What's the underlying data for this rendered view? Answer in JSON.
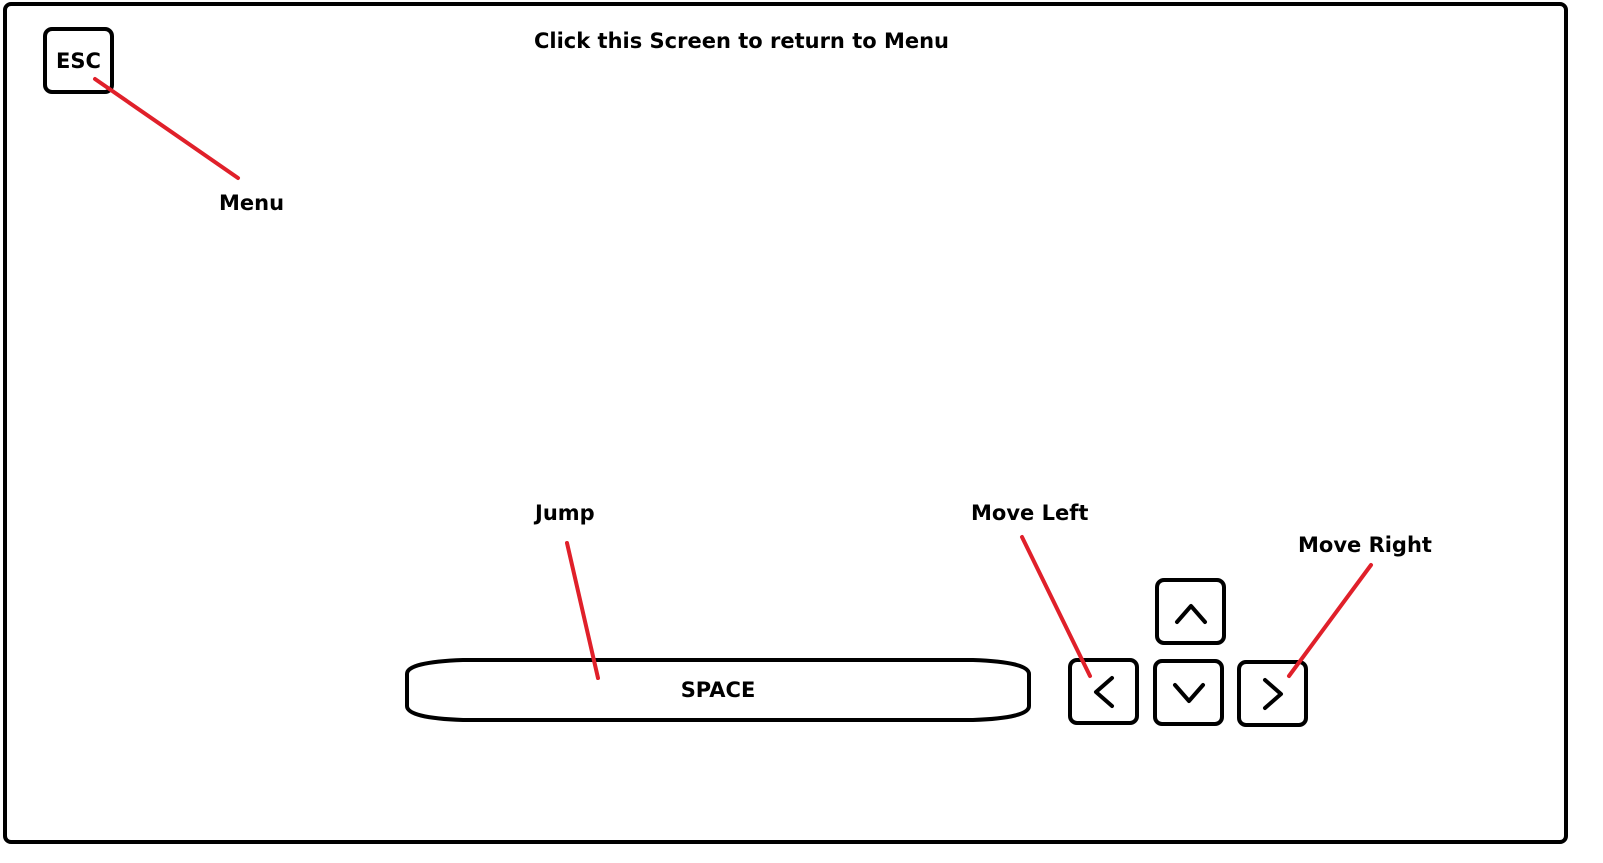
{
  "screen": {
    "title": "Click this Screen to return to Menu"
  },
  "keys": {
    "esc": {
      "label": "ESC",
      "action": "Menu"
    },
    "space": {
      "label": "SPACE",
      "action": "Jump"
    },
    "left": {
      "icon": "chevron-left-icon",
      "action": "Move Left"
    },
    "right": {
      "icon": "chevron-right-icon",
      "action": "Move Right"
    },
    "up": {
      "icon": "chevron-up-icon"
    },
    "down": {
      "icon": "chevron-down-icon"
    }
  },
  "colors": {
    "outline": "#000000",
    "pointer": "#e0202a",
    "background": "#ffffff"
  }
}
